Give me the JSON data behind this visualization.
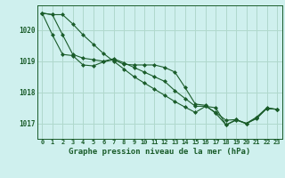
{
  "title": "Graphe pression niveau de la mer (hPa)",
  "background_color": "#cff0ee",
  "grid_color": "#b0d8cc",
  "line_color": "#1a5c2a",
  "xlim": [
    -0.5,
    23.5
  ],
  "ylim": [
    1016.5,
    1020.8
  ],
  "yticks": [
    1017,
    1018,
    1019,
    1020
  ],
  "series": {
    "line1": [
      1020.55,
      1020.5,
      1019.85,
      1019.22,
      1019.1,
      1019.05,
      1019.0,
      1019.08,
      1018.95,
      1018.8,
      1018.65,
      1018.5,
      1018.35,
      1018.05,
      1017.8,
      1017.55,
      1017.55,
      1017.5,
      1016.95,
      1017.1,
      1017.0,
      1017.2,
      1017.5,
      1017.45
    ],
    "line2": [
      1020.55,
      1019.85,
      1019.22,
      1019.18,
      1018.88,
      1018.85,
      1018.98,
      1019.05,
      1018.9,
      1018.88,
      1018.88,
      1018.88,
      1018.8,
      1018.65,
      1018.15,
      1017.62,
      1017.58,
      1017.32,
      1016.95,
      1017.12,
      1017.0,
      1017.15,
      1017.48,
      1017.45
    ],
    "line3": [
      1020.55,
      1020.5,
      1020.5,
      1020.2,
      1019.85,
      1019.55,
      1019.25,
      1019.0,
      1018.75,
      1018.5,
      1018.3,
      1018.1,
      1017.9,
      1017.7,
      1017.52,
      1017.35,
      1017.55,
      1017.35,
      1017.1,
      1017.12,
      1016.98,
      1017.18,
      1017.48,
      1017.45
    ]
  }
}
